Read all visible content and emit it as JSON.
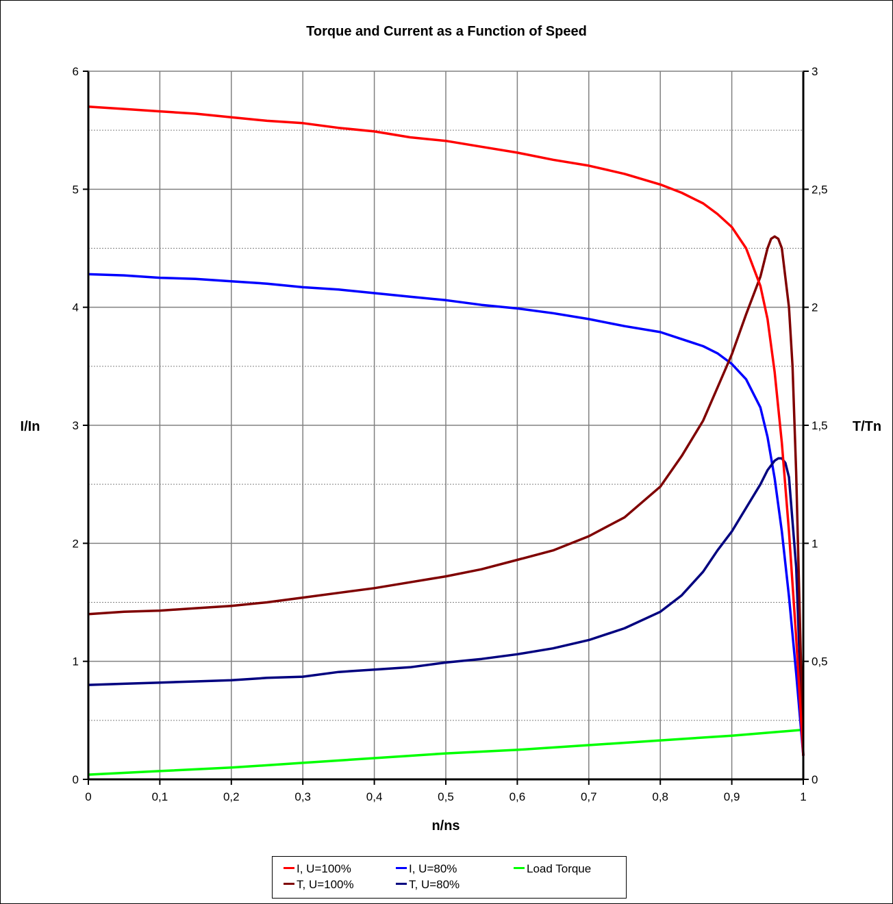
{
  "chart_data": {
    "type": "line",
    "title": "Torque and Current as a Function of Speed",
    "xlabel": "n/ns",
    "ylabel_left": "I/In",
    "ylabel_right": "T/Tn",
    "xlim": [
      0,
      1
    ],
    "ylim_left": [
      0,
      6
    ],
    "ylim_right": [
      0,
      3
    ],
    "x_ticks": [
      "0",
      "0,1",
      "0,2",
      "0,3",
      "0,4",
      "0,5",
      "0,6",
      "0,7",
      "0,8",
      "0,9",
      "1"
    ],
    "y_left_ticks": [
      "0",
      "1",
      "2",
      "3",
      "4",
      "5",
      "6"
    ],
    "y_right_ticks": [
      "0",
      "0,5",
      "1",
      "1,5",
      "2",
      "2,5",
      "3"
    ],
    "grid": true,
    "legend_position": "bottom",
    "series": [
      {
        "name": "I, U=100%",
        "color": "#ff0000",
        "axis": "left",
        "x": [
          0,
          0.05,
          0.1,
          0.15,
          0.2,
          0.25,
          0.3,
          0.35,
          0.4,
          0.45,
          0.5,
          0.55,
          0.6,
          0.65,
          0.7,
          0.75,
          0.8,
          0.83,
          0.86,
          0.88,
          0.9,
          0.92,
          0.94,
          0.95,
          0.96,
          0.97,
          0.98,
          0.99,
          1.0
        ],
        "y": [
          5.7,
          5.68,
          5.66,
          5.64,
          5.61,
          5.58,
          5.56,
          5.52,
          5.49,
          5.44,
          5.41,
          5.36,
          5.31,
          5.25,
          5.2,
          5.13,
          5.04,
          4.97,
          4.88,
          4.79,
          4.68,
          4.5,
          4.18,
          3.9,
          3.45,
          2.85,
          2.1,
          1.2,
          0.2
        ]
      },
      {
        "name": "I, U=80%",
        "color": "#0000ff",
        "axis": "left",
        "x": [
          0,
          0.05,
          0.1,
          0.15,
          0.2,
          0.25,
          0.3,
          0.35,
          0.4,
          0.45,
          0.5,
          0.55,
          0.6,
          0.65,
          0.7,
          0.75,
          0.8,
          0.83,
          0.86,
          0.88,
          0.9,
          0.92,
          0.94,
          0.95,
          0.96,
          0.97,
          0.98,
          0.99,
          1.0
        ],
        "y": [
          4.28,
          4.27,
          4.25,
          4.24,
          4.22,
          4.2,
          4.17,
          4.15,
          4.12,
          4.09,
          4.06,
          4.02,
          3.99,
          3.95,
          3.9,
          3.84,
          3.79,
          3.73,
          3.67,
          3.61,
          3.52,
          3.39,
          3.15,
          2.9,
          2.55,
          2.1,
          1.55,
          0.9,
          0.2
        ]
      },
      {
        "name": "Load Torque",
        "color": "#00ff00",
        "axis": "right",
        "x": [
          0,
          0.1,
          0.2,
          0.3,
          0.4,
          0.5,
          0.6,
          0.7,
          0.8,
          0.9,
          1.0
        ],
        "y": [
          0.02,
          0.035,
          0.05,
          0.07,
          0.09,
          0.11,
          0.125,
          0.145,
          0.165,
          0.185,
          0.21
        ]
      },
      {
        "name": "T, U=100%",
        "color": "#7f0000",
        "axis": "right",
        "x": [
          0,
          0.05,
          0.1,
          0.15,
          0.2,
          0.25,
          0.3,
          0.35,
          0.4,
          0.45,
          0.5,
          0.55,
          0.6,
          0.65,
          0.7,
          0.75,
          0.8,
          0.83,
          0.86,
          0.88,
          0.9,
          0.92,
          0.94,
          0.95,
          0.955,
          0.96,
          0.965,
          0.97,
          0.98,
          0.985,
          0.99,
          1.0
        ],
        "y": [
          0.7,
          0.71,
          0.715,
          0.725,
          0.735,
          0.75,
          0.77,
          0.79,
          0.81,
          0.835,
          0.86,
          0.89,
          0.93,
          0.97,
          1.03,
          1.11,
          1.24,
          1.37,
          1.52,
          1.66,
          1.8,
          1.97,
          2.13,
          2.25,
          2.29,
          2.3,
          2.29,
          2.25,
          2.0,
          1.75,
          1.3,
          0.1
        ]
      },
      {
        "name": "T, U=80%",
        "color": "#00007f",
        "axis": "right",
        "x": [
          0,
          0.05,
          0.1,
          0.15,
          0.2,
          0.25,
          0.3,
          0.35,
          0.4,
          0.45,
          0.5,
          0.55,
          0.6,
          0.65,
          0.7,
          0.75,
          0.8,
          0.83,
          0.86,
          0.88,
          0.9,
          0.92,
          0.94,
          0.95,
          0.96,
          0.965,
          0.97,
          0.975,
          0.98,
          0.99,
          1.0
        ],
        "y": [
          0.4,
          0.405,
          0.41,
          0.415,
          0.42,
          0.43,
          0.435,
          0.455,
          0.465,
          0.475,
          0.495,
          0.51,
          0.53,
          0.555,
          0.59,
          0.64,
          0.71,
          0.78,
          0.88,
          0.97,
          1.05,
          1.15,
          1.25,
          1.31,
          1.35,
          1.36,
          1.36,
          1.34,
          1.28,
          0.9,
          0.1
        ]
      }
    ],
    "legend_order": [
      "I, U=100%",
      "I, U=80%",
      "Load Torque",
      "T, U=100%",
      "T, U=80%"
    ]
  }
}
